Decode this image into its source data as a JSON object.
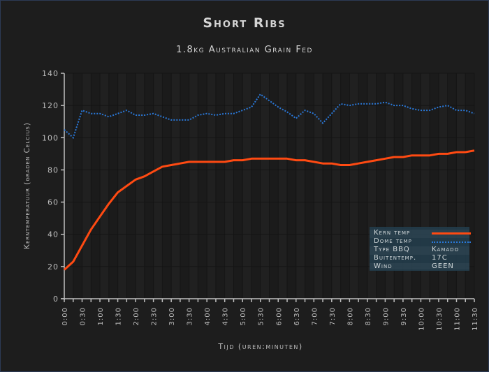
{
  "header": {
    "title": "Short Ribs",
    "subtitle": "1.8kg Australian Grain Fed"
  },
  "axes": {
    "ylabel": "Kerntemperatuur (graden Celcius)",
    "xlabel": "Tijd (uren:minuten)"
  },
  "legend": {
    "series": [
      {
        "label": "Kern temp",
        "style": "solid",
        "color": "#ff4a12"
      },
      {
        "label": "Dome temp",
        "style": "dotted",
        "color": "#2a78d8"
      }
    ],
    "info": [
      {
        "key": "Type BBQ",
        "value": "Kamado"
      },
      {
        "key": "Buitentemp.",
        "value": "17C"
      },
      {
        "key": "Wind",
        "value": "GEEN"
      }
    ]
  },
  "chart_data": {
    "type": "line",
    "title": "Short Ribs",
    "subtitle": "1.8kg Australian Grain Fed",
    "xlabel": "Tijd (uren:minuten)",
    "ylabel": "Kerntemperatuur (graden Celcius)",
    "ylim": [
      0,
      140
    ],
    "yticks": [
      0,
      20,
      40,
      60,
      80,
      100,
      120,
      140
    ],
    "xtick_labels": [
      "0:00",
      "0:30",
      "1:00",
      "1:30",
      "2:00",
      "2:30",
      "3:00",
      "3:30",
      "4:00",
      "4:30",
      "5:00",
      "5:30",
      "6:00",
      "6:30",
      "7:00",
      "7:30",
      "8:00",
      "8:30",
      "9:00",
      "9:30",
      "10:00",
      "10:30",
      "11:00",
      "11:30"
    ],
    "x": [
      "0:00",
      "0:15",
      "0:30",
      "0:45",
      "1:00",
      "1:15",
      "1:30",
      "1:45",
      "2:00",
      "2:15",
      "2:30",
      "2:45",
      "3:00",
      "3:15",
      "3:30",
      "3:45",
      "4:00",
      "4:15",
      "4:30",
      "4:45",
      "5:00",
      "5:15",
      "5:30",
      "5:45",
      "6:00",
      "6:15",
      "6:30",
      "6:45",
      "7:00",
      "7:15",
      "7:30",
      "7:45",
      "8:00",
      "8:15",
      "8:30",
      "8:45",
      "9:00",
      "9:15",
      "9:30",
      "9:45",
      "10:00",
      "10:15",
      "10:30",
      "10:45",
      "11:00",
      "11:15",
      "11:30"
    ],
    "grid": true,
    "legend_position": "lower right",
    "series": [
      {
        "name": "Kern temp",
        "color": "#ff4a12",
        "style": "solid",
        "values": [
          18,
          23,
          33,
          43,
          51,
          59,
          66,
          70,
          74,
          76,
          79,
          82,
          83,
          84,
          85,
          85,
          85,
          85,
          85,
          86,
          86,
          87,
          87,
          87,
          87,
          87,
          86,
          86,
          85,
          84,
          84,
          83,
          83,
          84,
          85,
          86,
          87,
          88,
          88,
          89,
          89,
          89,
          90,
          90,
          91,
          91,
          92
        ]
      },
      {
        "name": "Dome temp",
        "color": "#2a78d8",
        "style": "dotted",
        "values": [
          105,
          100,
          117,
          115,
          115,
          113,
          115,
          117,
          114,
          114,
          115,
          113,
          111,
          111,
          111,
          114,
          115,
          114,
          115,
          115,
          117,
          119,
          127,
          123,
          119,
          116,
          112,
          117,
          115,
          109,
          115,
          121,
          120,
          121,
          121,
          121,
          122,
          120,
          120,
          118,
          117,
          117,
          119,
          120,
          117,
          117,
          115
        ]
      }
    ]
  }
}
